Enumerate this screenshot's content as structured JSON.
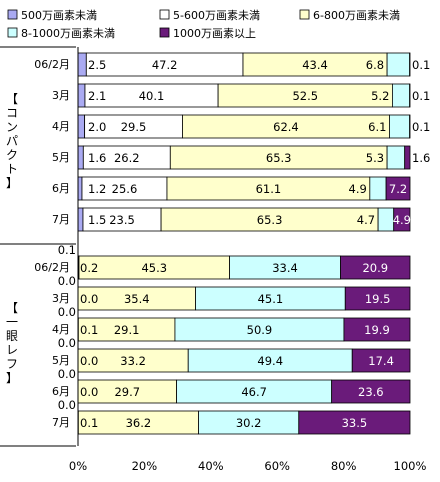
{
  "colors": {
    "s1": "#aaaaf2",
    "s2": "#ffffff",
    "s3": "#ffffcc",
    "s4": "#ccffff",
    "s5": "#6a1b7a",
    "border": "#000000"
  },
  "chart_data": {
    "type": "bar",
    "orientation": "horizontal",
    "stacked": "percent",
    "xlim": [
      0,
      100
    ],
    "x_ticks": [
      "0%",
      "20%",
      "40%",
      "60%",
      "80%",
      "100%"
    ],
    "legend_position": "top",
    "series_names": [
      "500万画素未満",
      "5-600万画素未満",
      "6-800万画素未満",
      "8-1000万画素未満",
      "1000万画素以上"
    ],
    "groups": [
      {
        "name": "【コンパクト】",
        "rows": [
          {
            "label": "06/2月",
            "values": [
              2.5,
              47.2,
              43.4,
              6.8,
              0.1
            ],
            "labels": [
              "2.5",
              "47.2",
              "43.4",
              "6.8",
              "0.1"
            ]
          },
          {
            "label": "3月",
            "values": [
              2.1,
              40.1,
              52.5,
              5.2,
              0.1
            ],
            "labels": [
              "2.1",
              "40.1",
              "52.5",
              "5.2",
              "0.1"
            ]
          },
          {
            "label": "4月",
            "values": [
              2.0,
              29.5,
              62.4,
              6.1,
              0.1
            ],
            "labels": [
              "2.0",
              "29.5",
              "62.4",
              "6.1",
              "0.1"
            ]
          },
          {
            "label": "5月",
            "values": [
              1.6,
              26.2,
              65.3,
              5.3,
              1.6
            ],
            "labels": [
              "1.6",
              "26.2",
              "65.3",
              "5.3",
              "1.6"
            ]
          },
          {
            "label": "6月",
            "values": [
              1.2,
              25.6,
              61.1,
              4.9,
              7.2
            ],
            "labels": [
              "1.2",
              "25.6",
              "61.1",
              "4.9",
              "7.2"
            ]
          },
          {
            "label": "7月",
            "values": [
              1.5,
              23.5,
              65.3,
              4.7,
              4.9
            ],
            "labels": [
              "1.5",
              "23.5",
              "65.3",
              "4.7",
              "4.9"
            ]
          }
        ]
      },
      {
        "name": "【一眼レフ】",
        "rows": [
          {
            "label": "06/2月",
            "values": [
              0.1,
              0.2,
              45.3,
              33.4,
              20.9
            ],
            "labels": [
              "0.1",
              "0.2",
              "45.3",
              "33.4",
              "20.9"
            ]
          },
          {
            "label": "3月",
            "values": [
              0.0,
              0.0,
              35.4,
              45.1,
              19.5
            ],
            "labels": [
              "0.0",
              "0.0",
              "35.4",
              "45.1",
              "19.5"
            ]
          },
          {
            "label": "4月",
            "values": [
              0.0,
              0.1,
              29.1,
              50.9,
              19.9
            ],
            "labels": [
              "0.0",
              "0.1",
              "29.1",
              "50.9",
              "19.9"
            ]
          },
          {
            "label": "5月",
            "values": [
              0.0,
              0.0,
              33.2,
              49.4,
              17.4
            ],
            "labels": [
              "0.0",
              "0.0",
              "33.2",
              "49.4",
              "17.4"
            ]
          },
          {
            "label": "6月",
            "values": [
              0.0,
              0.0,
              29.7,
              46.7,
              23.6
            ],
            "labels": [
              "0.0",
              "0.0",
              "29.7",
              "46.7",
              "23.6"
            ]
          },
          {
            "label": "7月",
            "values": [
              0.0,
              0.1,
              36.2,
              30.2,
              33.5
            ],
            "labels": [
              "0.0",
              "0.1",
              "36.2",
              "30.2",
              "33.5"
            ]
          }
        ]
      }
    ]
  }
}
